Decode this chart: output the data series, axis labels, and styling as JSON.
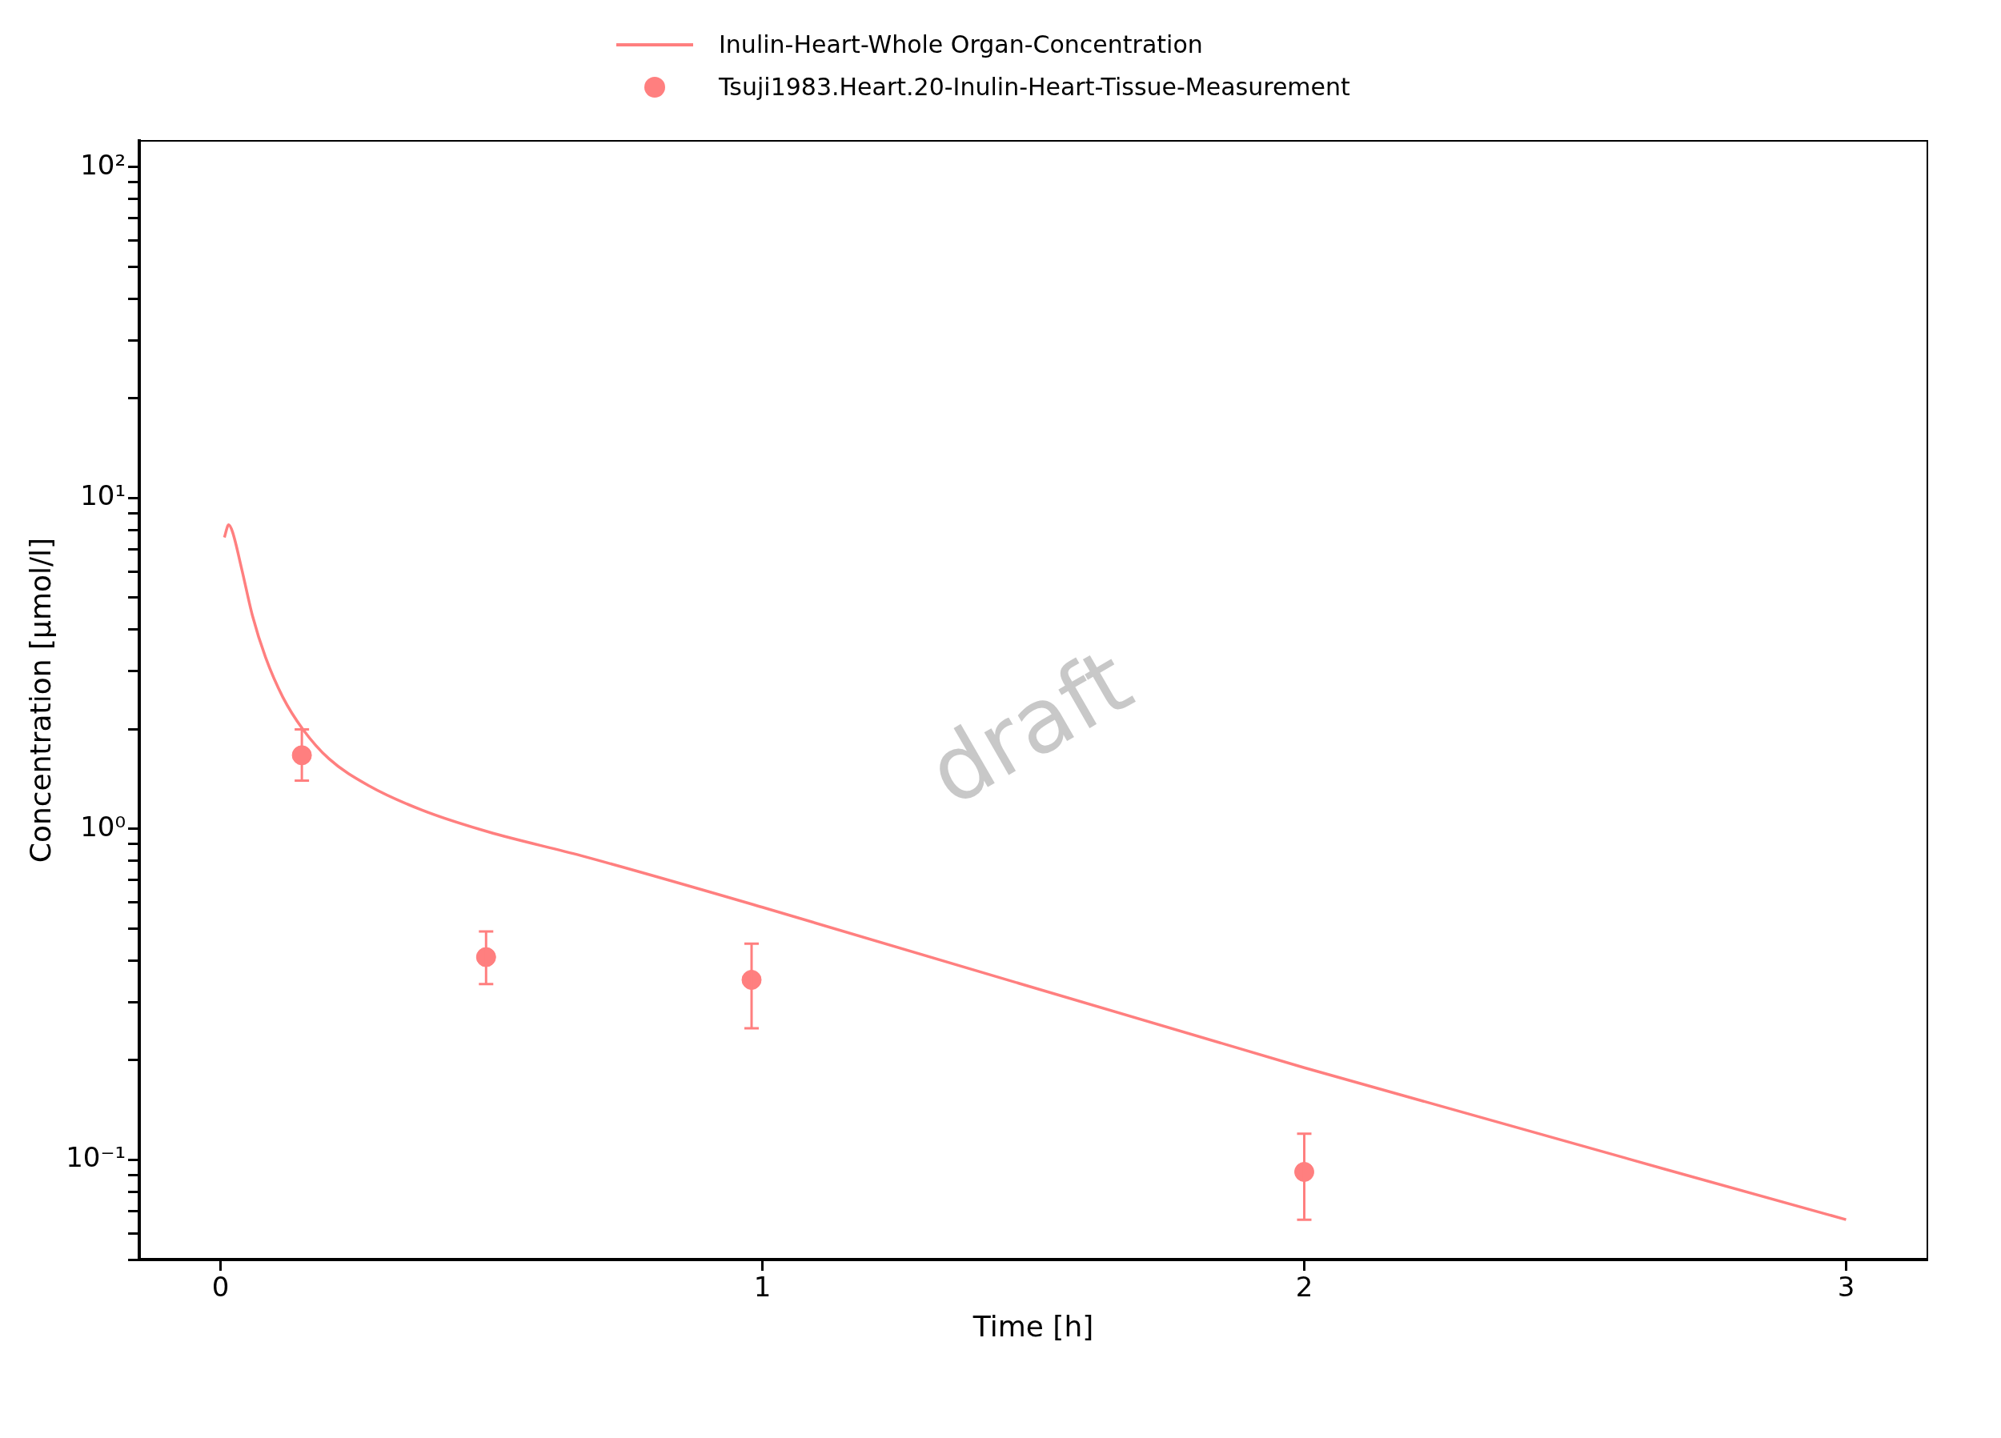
{
  "chart_data": {
    "type": "line",
    "xlabel": "Time [h]",
    "ylabel": "Concentration [µmol/l]",
    "log": "y",
    "grid": false,
    "legend": "top",
    "xlim": [
      -0.15,
      3.15
    ],
    "xticks": [
      0,
      1,
      2,
      3
    ],
    "ylim": [
      0.05,
      120
    ],
    "yticks": [
      {
        "value": 0.05,
        "label": null
      },
      {
        "value": 0.06,
        "label": null
      },
      {
        "value": 0.07,
        "label": null
      },
      {
        "value": 0.08,
        "label": null
      },
      {
        "value": 0.09,
        "label": null
      },
      {
        "value": 0.1,
        "label": "10⁻¹"
      },
      {
        "value": 0.2,
        "label": null
      },
      {
        "value": 0.3,
        "label": null
      },
      {
        "value": 0.4,
        "label": null
      },
      {
        "value": 0.5,
        "label": null
      },
      {
        "value": 0.6,
        "label": null
      },
      {
        "value": 0.7,
        "label": null
      },
      {
        "value": 0.8,
        "label": null
      },
      {
        "value": 0.9,
        "label": null
      },
      {
        "value": 1,
        "label": "10⁰"
      },
      {
        "value": 2,
        "label": null
      },
      {
        "value": 3,
        "label": null
      },
      {
        "value": 4,
        "label": null
      },
      {
        "value": 5,
        "label": null
      },
      {
        "value": 6,
        "label": null
      },
      {
        "value": 7,
        "label": null
      },
      {
        "value": 8,
        "label": null
      },
      {
        "value": 9,
        "label": null
      },
      {
        "value": 10,
        "label": "10¹"
      },
      {
        "value": 20,
        "label": null
      },
      {
        "value": 30,
        "label": null
      },
      {
        "value": 40,
        "label": null
      },
      {
        "value": 50,
        "label": null
      },
      {
        "value": 60,
        "label": null
      },
      {
        "value": 70,
        "label": null
      },
      {
        "value": 80,
        "label": null
      },
      {
        "value": 90,
        "label": null
      },
      {
        "value": 100,
        "label": "10²"
      }
    ],
    "annotations": [
      "draft"
    ],
    "series": [
      {
        "name": "Inulin-Heart-Whole Organ-Concentration",
        "color": "#ff7f7f",
        "marker": "none",
        "line_style": "solid",
        "x": [
          0.007,
          0.015,
          0.022,
          0.039,
          0.059,
          0.083,
          0.115,
          0.152,
          0.2,
          0.274,
          0.372,
          0.494,
          0.666,
          1,
          2,
          3
        ],
        "values": [
          7.6,
          8.3,
          7.9,
          6.1,
          4.4,
          3.3,
          2.5,
          2.0,
          1.63,
          1.35,
          1.14,
          0.98,
          0.83,
          0.58,
          0.19,
          0.066
        ]
      },
      {
        "name": "Tsuji1983.Heart.20-Inulin-Heart-Tissue-Measurement",
        "type": "scatter",
        "color": "#ff7f7f",
        "marker": "circle",
        "x": [
          0.15,
          0.49,
          0.98,
          2.0
        ],
        "values": [
          1.67,
          0.41,
          0.35,
          0.092
        ],
        "errors": [
          [
            1.4,
            2.0
          ],
          [
            0.34,
            0.49
          ],
          [
            0.25,
            0.45
          ],
          [
            0.066,
            0.12
          ]
        ]
      }
    ]
  }
}
